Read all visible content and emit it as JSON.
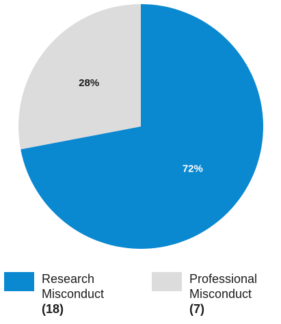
{
  "chart_data": {
    "type": "pie",
    "slices": [
      {
        "label_line1": "Research",
        "label_line2": "Misconduct",
        "count_text": "(18)",
        "value": 18,
        "percent_text": "72%",
        "color": "#0a88d0",
        "label_color": "#ffffff"
      },
      {
        "label_line1": "Professional",
        "label_line2": "Misconduct",
        "count_text": "(7)",
        "value": 7,
        "percent_text": "28%",
        "color": "#dcdcdc",
        "label_color": "#1a1a1a"
      }
    ],
    "legend_position": "bottom"
  }
}
